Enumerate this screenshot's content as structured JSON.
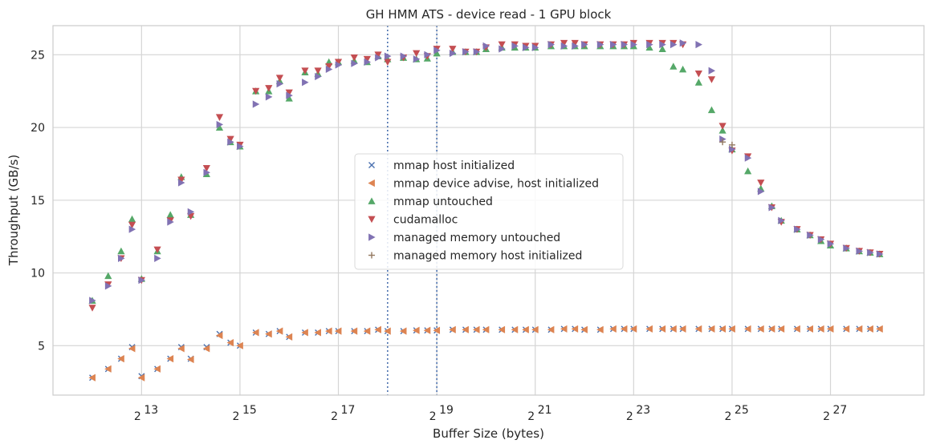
{
  "chart_data": {
    "type": "scatter",
    "title": "GH HMM ATS - device read - 1 GPU block",
    "xlabel": "Buffer Size (bytes)",
    "ylabel": "Throughput (GB/s)",
    "x_scale": "log2",
    "xlim_log2": [
      11.2,
      28.9
    ],
    "ylim": [
      1.6,
      27.0
    ],
    "x_ticks": [
      {
        "base": "2",
        "exp": "13",
        "log2": 13
      },
      {
        "base": "2",
        "exp": "15",
        "log2": 15
      },
      {
        "base": "2",
        "exp": "17",
        "log2": 17
      },
      {
        "base": "2",
        "exp": "19",
        "log2": 19
      },
      {
        "base": "2",
        "exp": "21",
        "log2": 21
      },
      {
        "base": "2",
        "exp": "23",
        "log2": 23
      },
      {
        "base": "2",
        "exp": "25",
        "log2": 25
      },
      {
        "base": "2",
        "exp": "27",
        "log2": 27
      }
    ],
    "y_ticks": [
      5,
      10,
      15,
      20,
      25
    ],
    "y_tick_labels": [
      "5",
      "10",
      "15",
      "20",
      "25"
    ],
    "vlines_log2": [
      18,
      19
    ],
    "grid": true,
    "legend_position": "center",
    "x_log2": [
      12,
      12.3219,
      12.585,
      12.8074,
      13,
      13.3219,
      13.585,
      13.8074,
      14,
      14.3219,
      14.585,
      14.8074,
      15,
      15.3219,
      15.585,
      15.8074,
      16,
      16.3219,
      16.585,
      16.8074,
      17,
      17.3219,
      17.585,
      17.8074,
      18,
      18.3219,
      18.585,
      18.8074,
      19,
      19.3219,
      19.585,
      19.8074,
      20,
      20.3219,
      20.585,
      20.8074,
      21,
      21.3219,
      21.585,
      21.8074,
      22,
      22.3219,
      22.585,
      22.8074,
      23,
      23.3219,
      23.585,
      23.8074,
      24,
      24.3219,
      24.585,
      24.8074,
      25,
      25.3219,
      25.585,
      25.8074,
      26,
      26.3219,
      26.585,
      26.8074,
      27,
      27.3219,
      27.585,
      27.8074,
      28
    ],
    "series": [
      {
        "name": "mmap host initialized",
        "marker": "x",
        "color": "#4c72b0",
        "values": [
          2.8,
          3.4,
          4.1,
          4.9,
          2.9,
          3.4,
          4.1,
          4.9,
          4.1,
          4.9,
          5.8,
          5.2,
          5.0,
          5.9,
          5.8,
          6.0,
          5.6,
          5.9,
          5.9,
          6.0,
          6.0,
          6.0,
          6.0,
          6.1,
          6.0,
          6.0,
          6.05,
          6.05,
          6.05,
          6.1,
          6.1,
          6.1,
          6.1,
          6.1,
          6.1,
          6.1,
          6.1,
          6.1,
          6.15,
          6.15,
          6.1,
          6.1,
          6.15,
          6.15,
          6.15,
          6.15,
          6.15,
          6.15,
          6.15,
          6.15,
          6.15,
          6.15,
          6.15,
          6.15,
          6.15,
          6.15,
          6.15,
          6.15,
          6.15,
          6.15,
          6.15,
          6.15,
          6.15,
          6.15,
          6.15
        ]
      },
      {
        "name": "mmap device advise, host initialized",
        "marker": "triangle-left",
        "color": "#dd8452",
        "values": [
          2.8,
          3.4,
          4.1,
          4.8,
          2.8,
          3.4,
          4.1,
          4.8,
          4.05,
          4.8,
          5.7,
          5.2,
          5.0,
          5.9,
          5.8,
          6.0,
          5.6,
          5.9,
          5.9,
          6.0,
          6.0,
          6.0,
          6.0,
          6.1,
          6.0,
          6.0,
          6.05,
          6.05,
          6.05,
          6.1,
          6.1,
          6.1,
          6.1,
          6.1,
          6.1,
          6.1,
          6.1,
          6.1,
          6.15,
          6.15,
          6.1,
          6.1,
          6.15,
          6.15,
          6.15,
          6.15,
          6.15,
          6.15,
          6.15,
          6.15,
          6.15,
          6.15,
          6.15,
          6.15,
          6.15,
          6.15,
          6.15,
          6.15,
          6.15,
          6.15,
          6.15,
          6.15,
          6.15,
          6.15,
          6.15
        ]
      },
      {
        "name": "mmap untouched",
        "marker": "triangle-up",
        "color": "#55a868",
        "values": [
          8.1,
          9.8,
          11.5,
          13.7,
          9.6,
          11.5,
          14.0,
          16.6,
          14.0,
          16.8,
          20.0,
          19.0,
          18.7,
          22.5,
          22.5,
          23.2,
          22.0,
          23.8,
          23.7,
          24.5,
          24.5,
          24.6,
          24.5,
          24.9,
          24.7,
          24.8,
          24.7,
          24.75,
          25.1,
          25.2,
          25.2,
          25.2,
          25.4,
          25.5,
          25.5,
          25.5,
          25.5,
          25.6,
          25.6,
          25.6,
          25.6,
          25.6,
          25.6,
          25.6,
          25.6,
          25.5,
          25.4,
          24.2,
          24.0,
          23.1,
          21.2,
          19.8,
          18.5,
          17.0,
          15.8,
          14.6,
          13.6,
          13.0,
          12.6,
          12.2,
          11.9,
          11.7,
          11.5,
          11.4,
          11.3
        ]
      },
      {
        "name": "cudamalloc",
        "marker": "triangle-down",
        "color": "#c44e52",
        "values": [
          7.6,
          9.2,
          11.0,
          13.3,
          9.5,
          11.6,
          13.6,
          16.4,
          13.9,
          17.2,
          20.7,
          19.2,
          18.8,
          22.5,
          22.7,
          23.4,
          22.4,
          23.9,
          23.9,
          24.2,
          24.5,
          24.8,
          24.7,
          25.0,
          24.5,
          24.8,
          25.1,
          24.9,
          25.4,
          25.4,
          25.2,
          25.2,
          25.5,
          25.7,
          25.7,
          25.6,
          25.6,
          25.7,
          25.8,
          25.8,
          25.7,
          25.7,
          25.7,
          25.7,
          25.8,
          25.8,
          25.8,
          25.8,
          25.7,
          23.7,
          23.3,
          20.1,
          18.4,
          18.0,
          16.2,
          14.5,
          13.5,
          13.0,
          12.6,
          12.3,
          12.0,
          11.7,
          11.5,
          11.4,
          11.3
        ]
      },
      {
        "name": "managed memory untouched",
        "marker": "triangle-right",
        "color": "#8172b3",
        "values": [
          8.1,
          9.1,
          11.0,
          13.0,
          9.5,
          11.0,
          13.5,
          16.2,
          14.2,
          16.9,
          20.2,
          19.0,
          18.7,
          21.6,
          22.1,
          23.0,
          22.2,
          23.1,
          23.5,
          24.0,
          24.3,
          24.4,
          24.5,
          24.8,
          24.9,
          24.9,
          24.7,
          25.0,
          25.3,
          25.1,
          25.2,
          25.2,
          25.6,
          25.4,
          25.6,
          25.5,
          25.5,
          25.7,
          25.6,
          25.6,
          25.7,
          25.7,
          25.7,
          25.7,
          25.7,
          25.7,
          25.7,
          25.7,
          25.8,
          25.7,
          23.9,
          19.2,
          18.5,
          17.9,
          15.6,
          14.5,
          13.6,
          13.0,
          12.6,
          12.3,
          12.0,
          11.7,
          11.5,
          11.4,
          11.3
        ]
      },
      {
        "name": "managed memory host initialized",
        "marker": "plus",
        "color": "#937860",
        "values": [
          null,
          null,
          null,
          null,
          null,
          null,
          null,
          null,
          null,
          null,
          null,
          null,
          null,
          null,
          null,
          null,
          null,
          null,
          null,
          null,
          null,
          null,
          null,
          null,
          null,
          null,
          null,
          null,
          null,
          null,
          null,
          null,
          null,
          null,
          null,
          null,
          null,
          null,
          null,
          null,
          null,
          null,
          null,
          null,
          null,
          null,
          null,
          null,
          null,
          null,
          null,
          19.0,
          18.8,
          null,
          null,
          null,
          null,
          null,
          null,
          null,
          null,
          null,
          null,
          null,
          null
        ]
      }
    ]
  }
}
